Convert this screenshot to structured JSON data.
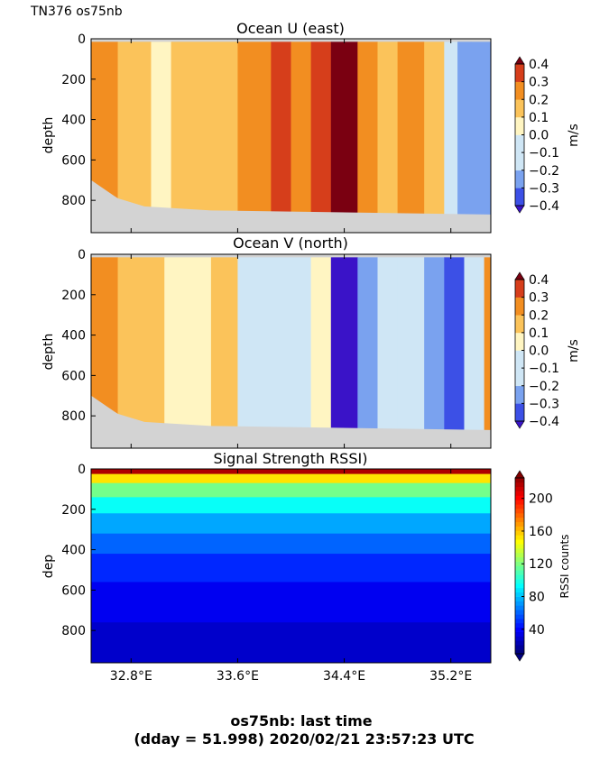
{
  "header": {
    "cruise_label": "TN376 os75nb"
  },
  "footer": {
    "line1": "os75nb: last time",
    "line2": "(dday = 51.998) 2020/02/21 23:57:23 UTC"
  },
  "chart_data": [
    {
      "type": "heatmap",
      "title": "Ocean U (east)",
      "ylabel": "depth",
      "ylim": [
        960,
        0
      ],
      "xlim": [
        32.5,
        35.5
      ],
      "yticks": [
        "0",
        "200",
        "400",
        "600",
        "800"
      ],
      "colorbar": {
        "label": "m/s",
        "levels": [
          -0.4,
          -0.3,
          -0.2,
          -0.1,
          0.0,
          0.1,
          0.2,
          0.3,
          0.4
        ],
        "ticks": [
          "0.4",
          "0.3",
          "0.2",
          "0.1",
          "0.0",
          "−0.1",
          "−0.2",
          "−0.3",
          "−0.4"
        ]
      },
      "columns": [
        {
          "x0": 32.5,
          "x1": 32.7,
          "v": 0.12
        },
        {
          "x0": 32.7,
          "x1": 32.95,
          "v": 0.05
        },
        {
          "x0": 32.95,
          "x1": 33.1,
          "v": -0.04
        },
        {
          "x0": 33.1,
          "x1": 33.45,
          "v": 0.03
        },
        {
          "x0": 33.45,
          "x1": 33.6,
          "v": 0.05
        },
        {
          "x0": 33.6,
          "x1": 33.85,
          "v": 0.16
        },
        {
          "x0": 33.85,
          "x1": 34.0,
          "v": 0.25
        },
        {
          "x0": 34.0,
          "x1": 34.15,
          "v": 0.15
        },
        {
          "x0": 34.15,
          "x1": 34.3,
          "v": 0.25
        },
        {
          "x0": 34.3,
          "x1": 34.5,
          "v": 0.42
        },
        {
          "x0": 34.5,
          "x1": 34.65,
          "v": 0.18
        },
        {
          "x0": 34.65,
          "x1": 34.8,
          "v": 0.04
        },
        {
          "x0": 34.8,
          "x1": 35.0,
          "v": 0.12
        },
        {
          "x0": 35.0,
          "x1": 35.15,
          "v": 0.0
        },
        {
          "x0": 35.15,
          "x1": 35.25,
          "v": -0.15
        },
        {
          "x0": 35.25,
          "x1": 35.35,
          "v": -0.22
        },
        {
          "x0": 35.35,
          "x1": 35.5,
          "v": -0.3
        }
      ]
    },
    {
      "type": "heatmap",
      "title": "Ocean V (north)",
      "ylabel": "depth",
      "ylim": [
        960,
        0
      ],
      "xlim": [
        32.5,
        35.5
      ],
      "yticks": [
        "0",
        "200",
        "400",
        "600",
        "800"
      ],
      "colorbar": {
        "label": "m/s",
        "levels": [
          -0.4,
          -0.3,
          -0.2,
          -0.1,
          0.0,
          0.1,
          0.2,
          0.3,
          0.4
        ],
        "ticks": [
          "0.4",
          "0.3",
          "0.2",
          "0.1",
          "0.0",
          "−0.1",
          "−0.2",
          "−0.3",
          "−0.4"
        ]
      },
      "columns": [
        {
          "x0": 32.5,
          "x1": 32.7,
          "v": 0.14
        },
        {
          "x0": 32.7,
          "x1": 32.85,
          "v": 0.05
        },
        {
          "x0": 32.85,
          "x1": 33.05,
          "v": 0.02
        },
        {
          "x0": 33.05,
          "x1": 33.4,
          "v": -0.04
        },
        {
          "x0": 33.4,
          "x1": 33.6,
          "v": 0.03
        },
        {
          "x0": 33.6,
          "x1": 33.75,
          "v": -0.12
        },
        {
          "x0": 33.75,
          "x1": 34.0,
          "v": -0.2
        },
        {
          "x0": 34.0,
          "x1": 34.15,
          "v": -0.14
        },
        {
          "x0": 34.15,
          "x1": 34.3,
          "v": -0.06
        },
        {
          "x0": 34.3,
          "x1": 34.5,
          "v": -0.42
        },
        {
          "x0": 34.5,
          "x1": 34.65,
          "v": -0.3
        },
        {
          "x0": 34.65,
          "x1": 34.8,
          "v": -0.18
        },
        {
          "x0": 34.8,
          "x1": 35.0,
          "v": -0.12
        },
        {
          "x0": 35.0,
          "x1": 35.15,
          "v": -0.22
        },
        {
          "x0": 35.15,
          "x1": 35.3,
          "v": -0.35
        },
        {
          "x0": 35.3,
          "x1": 35.45,
          "v": -0.2
        },
        {
          "x0": 35.45,
          "x1": 35.5,
          "v": 0.12
        }
      ]
    },
    {
      "type": "heatmap",
      "title": "Signal Strength RSSI)",
      "ylabel": "dep",
      "ylim": [
        960,
        0
      ],
      "xlim": [
        32.5,
        35.5
      ],
      "yticks": [
        "0",
        "200",
        "400",
        "600",
        "800"
      ],
      "xticks": [
        "32.8°E",
        "33.6°E",
        "34.4°E",
        "35.2°E"
      ],
      "xtick_values": [
        32.8,
        33.6,
        34.4,
        35.2
      ],
      "colorbar": {
        "label": "RSSI counts",
        "range": [
          10,
          225
        ],
        "ticks": [
          "200",
          "160",
          "120",
          "80",
          "40"
        ],
        "tick_values": [
          200,
          160,
          120,
          80,
          40
        ]
      },
      "depth_profile": [
        {
          "d0": 0,
          "d1": 25,
          "v": 215
        },
        {
          "d0": 25,
          "d1": 70,
          "v": 150
        },
        {
          "d0": 70,
          "d1": 140,
          "v": 115
        },
        {
          "d0": 140,
          "d1": 220,
          "v": 92
        },
        {
          "d0": 220,
          "d1": 320,
          "v": 72
        },
        {
          "d0": 320,
          "d1": 420,
          "v": 58
        },
        {
          "d0": 420,
          "d1": 560,
          "v": 45
        },
        {
          "d0": 560,
          "d1": 760,
          "v": 34
        },
        {
          "d0": 760,
          "d1": 960,
          "v": 26
        }
      ]
    }
  ]
}
